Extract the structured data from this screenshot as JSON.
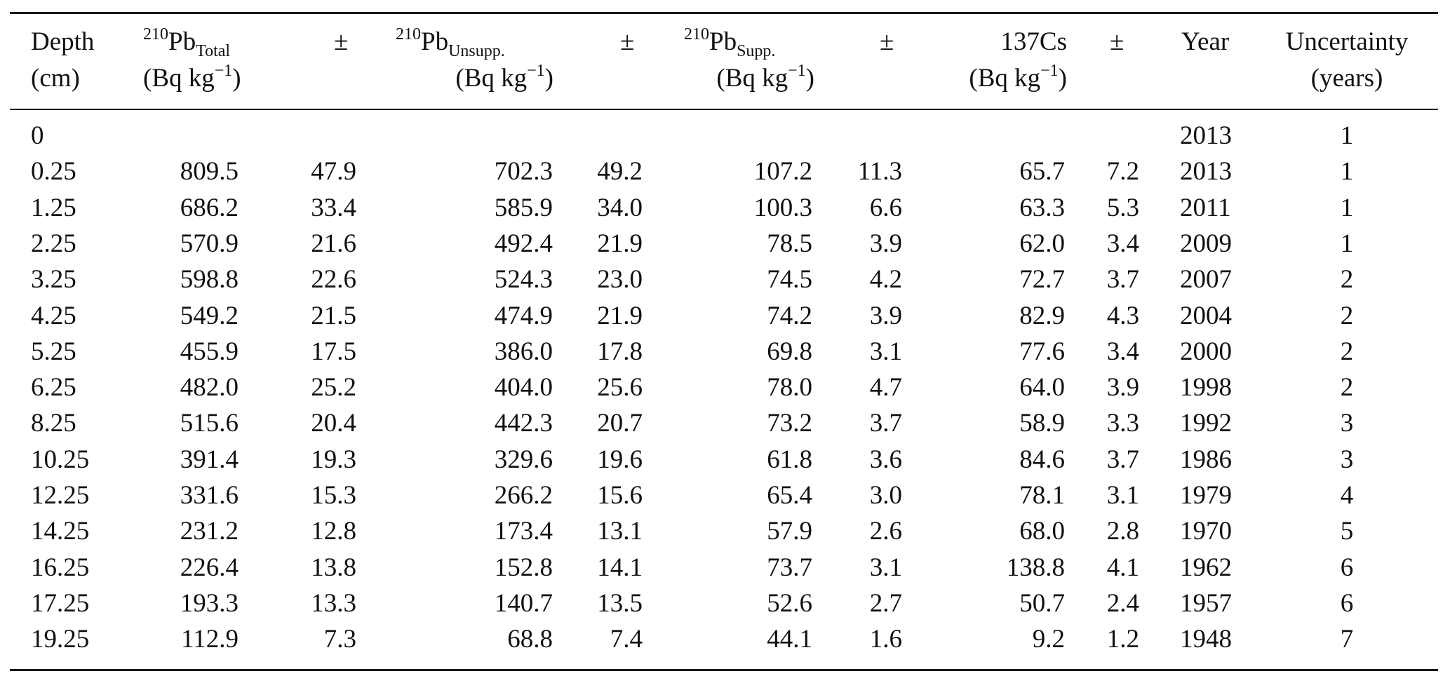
{
  "table": {
    "headers": [
      {
        "key": "depth",
        "line1": "Depth",
        "line2": "(cm)"
      },
      {
        "key": "pb_total",
        "sup": "210",
        "base": "Pb",
        "sub": "Total",
        "unit": "(Bq kg",
        "unit_sup": "−1",
        "unit_close": ")"
      },
      {
        "key": "pb_total_err",
        "line1": "±"
      },
      {
        "key": "pb_unsupp",
        "sup": "210",
        "base": "Pb",
        "sub": "Unsupp.",
        "unit": "(Bq kg",
        "unit_sup": "−1",
        "unit_close": ")"
      },
      {
        "key": "pb_unsupp_err",
        "line1": "±"
      },
      {
        "key": "pb_supp",
        "sup": "210",
        "base": "Pb",
        "sub": "Supp.",
        "unit": "(Bq kg",
        "unit_sup": "−1",
        "unit_close": ")"
      },
      {
        "key": "pb_supp_err",
        "line1": "±"
      },
      {
        "key": "cs137",
        "line1": "137Cs",
        "unit": "(Bq kg",
        "unit_sup": "−1",
        "unit_close": ")"
      },
      {
        "key": "cs137_err",
        "line1": "±"
      },
      {
        "key": "year",
        "line1": "Year"
      },
      {
        "key": "uncertainty",
        "line1": "Uncertainty",
        "line2": "(years)"
      }
    ],
    "rows": [
      [
        "0",
        "",
        "",
        "",
        "",
        "",
        "",
        "",
        "",
        "2013",
        "1"
      ],
      [
        "0.25",
        "809.5",
        "47.9",
        "702.3",
        "49.2",
        "107.2",
        "11.3",
        "65.7",
        "7.2",
        "2013",
        "1"
      ],
      [
        "1.25",
        "686.2",
        "33.4",
        "585.9",
        "34.0",
        "100.3",
        "6.6",
        "63.3",
        "5.3",
        "2011",
        "1"
      ],
      [
        "2.25",
        "570.9",
        "21.6",
        "492.4",
        "21.9",
        "78.5",
        "3.9",
        "62.0",
        "3.4",
        "2009",
        "1"
      ],
      [
        "3.25",
        "598.8",
        "22.6",
        "524.3",
        "23.0",
        "74.5",
        "4.2",
        "72.7",
        "3.7",
        "2007",
        "2"
      ],
      [
        "4.25",
        "549.2",
        "21.5",
        "474.9",
        "21.9",
        "74.2",
        "3.9",
        "82.9",
        "4.3",
        "2004",
        "2"
      ],
      [
        "5.25",
        "455.9",
        "17.5",
        "386.0",
        "17.8",
        "69.8",
        "3.1",
        "77.6",
        "3.4",
        "2000",
        "2"
      ],
      [
        "6.25",
        "482.0",
        "25.2",
        "404.0",
        "25.6",
        "78.0",
        "4.7",
        "64.0",
        "3.9",
        "1998",
        "2"
      ],
      [
        "8.25",
        "515.6",
        "20.4",
        "442.3",
        "20.7",
        "73.2",
        "3.7",
        "58.9",
        "3.3",
        "1992",
        "3"
      ],
      [
        "10.25",
        "391.4",
        "19.3",
        "329.6",
        "19.6",
        "61.8",
        "3.6",
        "84.6",
        "3.7",
        "1986",
        "3"
      ],
      [
        "12.25",
        "331.6",
        "15.3",
        "266.2",
        "15.6",
        "65.4",
        "3.0",
        "78.1",
        "3.1",
        "1979",
        "4"
      ],
      [
        "14.25",
        "231.2",
        "12.8",
        "173.4",
        "13.1",
        "57.9",
        "2.6",
        "68.0",
        "2.8",
        "1970",
        "5"
      ],
      [
        "16.25",
        "226.4",
        "13.8",
        "152.8",
        "14.1",
        "73.7",
        "3.1",
        "138.8",
        "4.1",
        "1962",
        "6"
      ],
      [
        "17.25",
        "193.3",
        "13.3",
        "140.7",
        "13.5",
        "52.6",
        "2.7",
        "50.7",
        "2.4",
        "1957",
        "6"
      ],
      [
        "19.25",
        "112.9",
        "7.3",
        "68.8",
        "7.4",
        "44.1",
        "1.6",
        "9.2",
        "1.2",
        "1948",
        "7"
      ]
    ]
  }
}
